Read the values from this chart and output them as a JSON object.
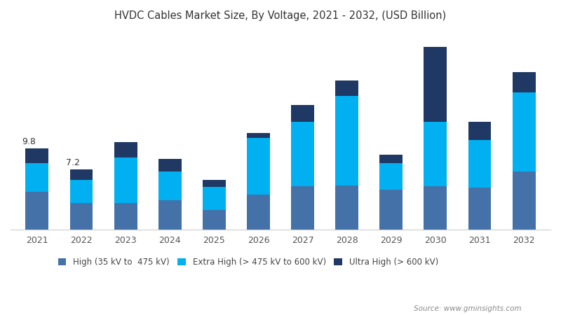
{
  "years": [
    2021,
    2022,
    2023,
    2024,
    2025,
    2026,
    2027,
    2028,
    2029,
    2030,
    2031,
    2032
  ],
  "high": [
    4.5,
    3.2,
    3.2,
    3.5,
    2.3,
    4.2,
    5.2,
    5.3,
    4.8,
    5.2,
    5.0,
    7.0
  ],
  "extra_high": [
    3.5,
    2.8,
    5.5,
    3.5,
    2.8,
    6.8,
    7.8,
    10.8,
    3.2,
    7.8,
    5.8,
    9.5
  ],
  "ultra_high": [
    1.8,
    1.2,
    1.8,
    1.5,
    0.9,
    0.6,
    2.0,
    1.9,
    1.0,
    9.0,
    2.2,
    2.5
  ],
  "annotations": {
    "2021": "9.8",
    "2022": "7.2"
  },
  "color_high": "#4472a8",
  "color_extra_high": "#00b0f0",
  "color_ultra_high": "#1f3864",
  "title": "HVDC Cables Market Size, By Voltage, 2021 - 2032, (USD Billion)",
  "legend_high": "High (35 kV to  475 kV)",
  "legend_extra_high": "Extra High (> 475 kV to 600 kV)",
  "legend_ultra_high": "Ultra High (> 600 kV)",
  "source_text": "Source: www.gminsights.com",
  "background_color": "#ffffff",
  "ylim": [
    0,
    24
  ]
}
